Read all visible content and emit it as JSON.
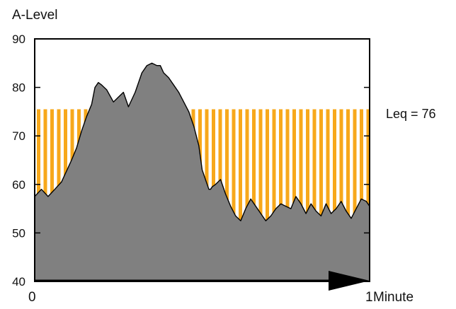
{
  "chart_data": {
    "type": "area",
    "ylabel": "A-Level",
    "xlabel": "Minute",
    "x_start_label": "0",
    "x_end_label": "1",
    "xlim": [
      0,
      1
    ],
    "ylim": [
      40,
      90
    ],
    "yticks": [
      40,
      50,
      60,
      70,
      80,
      90
    ],
    "grid": false,
    "colors": {
      "area_fill": "#808080",
      "area_stroke": "#000000",
      "leq_stripe": "#f7a81b",
      "axis": "#000000"
    },
    "leq": {
      "label": "Leq = 76",
      "value": 75.5
    },
    "series": [
      {
        "x": [
          0.0,
          0.02,
          0.04,
          0.06,
          0.08,
          0.1,
          0.11,
          0.125,
          0.14,
          0.155,
          0.17,
          0.18,
          0.19,
          0.2,
          0.215,
          0.235,
          0.25,
          0.265,
          0.28,
          0.3,
          0.32,
          0.335,
          0.35,
          0.365,
          0.375,
          0.385,
          0.4,
          0.415,
          0.43,
          0.445,
          0.46,
          0.475,
          0.49,
          0.5,
          0.51,
          0.52,
          0.525,
          0.53,
          0.54,
          0.555,
          0.57,
          0.585,
          0.6,
          0.615,
          0.63,
          0.645,
          0.66,
          0.675,
          0.69,
          0.705,
          0.72,
          0.735,
          0.75,
          0.765,
          0.78,
          0.795,
          0.81,
          0.825,
          0.84,
          0.855,
          0.87,
          0.885,
          0.9,
          0.915,
          0.93,
          0.945,
          0.96,
          0.975,
          0.99,
          1.0
        ],
        "y": [
          57.5,
          59,
          57.5,
          59,
          60.5,
          63.5,
          65,
          67.5,
          71,
          74,
          76.5,
          80,
          81,
          80.5,
          79.5,
          77,
          78,
          79,
          76,
          79,
          83,
          84.5,
          85,
          84.5,
          84.5,
          83,
          82,
          80.5,
          79,
          77,
          75,
          72,
          68,
          63,
          61,
          59,
          59,
          59.5,
          60,
          61,
          58,
          55.5,
          53.5,
          52.5,
          55,
          57,
          55.5,
          54,
          52.5,
          53.5,
          55,
          56,
          55.5,
          55,
          57.5,
          56,
          54,
          56,
          54.5,
          53.5,
          56,
          54,
          55,
          56.5,
          54.5,
          53,
          55,
          57,
          56.5,
          55.5
        ]
      }
    ]
  }
}
